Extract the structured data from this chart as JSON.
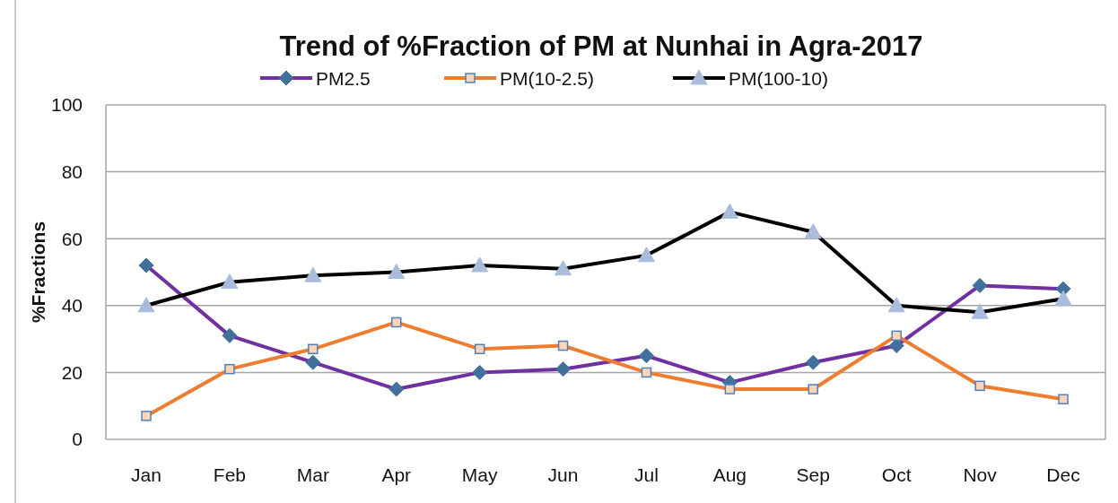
{
  "chart_data": {
    "type": "line",
    "title": "Trend of %Fraction of PM at Nunhai in Agra-2017",
    "ylabel": "%Fractions",
    "categories": [
      "Jan",
      "Feb",
      "Mar",
      "Apr",
      "May",
      "Jun",
      "Jul",
      "Aug",
      "Sep",
      "Oct",
      "Nov",
      "Dec"
    ],
    "series": [
      {
        "name": "PM2.5",
        "color": "#7030a0",
        "marker": "diamond",
        "values": [
          52,
          31,
          23,
          15,
          20,
          21,
          25,
          17,
          23,
          28,
          46,
          45
        ]
      },
      {
        "name": "PM(10-2.5)",
        "color": "#ed7d31",
        "marker": "square",
        "values": [
          7,
          21,
          27,
          35,
          27,
          28,
          20,
          15,
          15,
          31,
          16,
          12
        ]
      },
      {
        "name": "PM(100-10)",
        "color": "#000000",
        "marker": "triangle",
        "values": [
          40,
          47,
          49,
          50,
          52,
          51,
          55,
          68,
          62,
          40,
          38,
          42
        ]
      }
    ],
    "ylim": [
      0,
      100
    ],
    "yticks": [
      0,
      20,
      40,
      60,
      80,
      100
    ],
    "grid": "y",
    "legend": "top"
  }
}
